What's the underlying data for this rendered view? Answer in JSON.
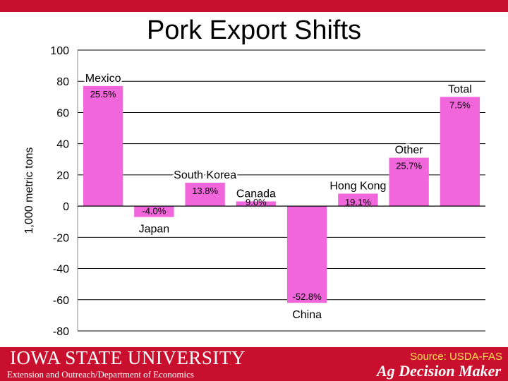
{
  "theme": {
    "brand_red": "#c8102e",
    "bar_color": "#f266dc",
    "source_color": "#ffe14d"
  },
  "header": {
    "title": "Pork Export Shifts"
  },
  "chart_data": {
    "type": "bar",
    "title": "Pork Export Shifts",
    "ylabel": "1,000 metric tons",
    "xlabel": "",
    "ylim": [
      -80,
      100
    ],
    "yticks": [
      100,
      80,
      60,
      40,
      20,
      0,
      -20,
      -40,
      -60,
      -80
    ],
    "grid": true,
    "categories": [
      "Mexico",
      "Japan",
      "South Korea",
      "Canada",
      "China",
      "Hong Kong",
      "Other",
      "Total"
    ],
    "values": [
      77,
      -7,
      15,
      3,
      -62,
      8,
      31,
      70
    ],
    "data_labels": [
      "25.5%",
      "-4.0%",
      "13.8%",
      "9.0%",
      "-52.8%",
      "19.1%",
      "25.7%",
      "7.5%"
    ]
  },
  "footer": {
    "university": "Iowa State University",
    "extension": "Extension and Outreach/Department of Economics",
    "source": "Source: USDA-FAS",
    "brand": "Ag Decision Maker"
  }
}
